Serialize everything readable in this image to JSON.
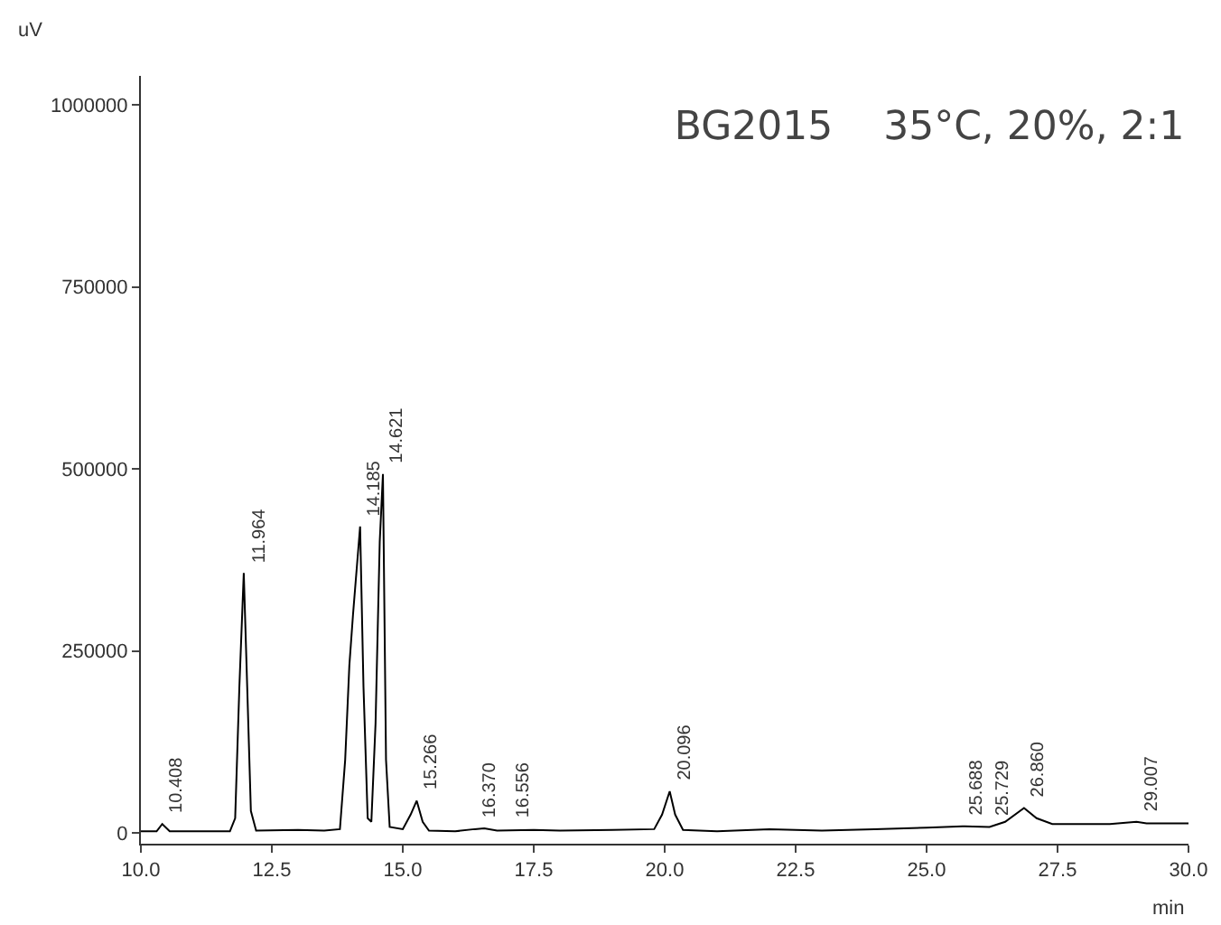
{
  "chart_data": {
    "type": "line",
    "title": "BG2015    35°C, 20%, 2:1",
    "xlabel": "min",
    "ylabel": "uV",
    "x": [
      10.0,
      10.3,
      10.408,
      10.55,
      11.0,
      11.7,
      11.8,
      11.88,
      11.964,
      12.03,
      12.1,
      12.2,
      13.0,
      13.5,
      13.8,
      13.9,
      13.98,
      14.05,
      14.185,
      14.25,
      14.33,
      14.4,
      14.48,
      14.56,
      14.621,
      14.68,
      14.75,
      15.0,
      15.15,
      15.266,
      15.38,
      15.5,
      16.0,
      16.37,
      16.556,
      16.8,
      17.5,
      18.0,
      19.0,
      19.8,
      19.95,
      20.096,
      20.2,
      20.35,
      21.0,
      22.0,
      23.0,
      24.0,
      25.0,
      25.688,
      25.729,
      26.2,
      26.5,
      26.86,
      27.1,
      27.4,
      28.5,
      29.007,
      29.2,
      30.0
    ],
    "series": [
      {
        "color": "#000000",
        "values": [
          2000,
          2000,
          12000,
          2000,
          2000,
          2000,
          20000,
          200000,
          357000,
          200000,
          30000,
          3000,
          4000,
          3000,
          5000,
          100000,
          230000,
          300000,
          421000,
          200000,
          20000,
          15000,
          150000,
          400000,
          493000,
          100000,
          8000,
          5000,
          25000,
          44000,
          15000,
          3000,
          2000,
          5000,
          6000,
          3000,
          4000,
          3000,
          4000,
          5000,
          25000,
          57000,
          25000,
          4000,
          2000,
          5000,
          3000,
          5000,
          7000,
          9000,
          9000,
          8000,
          15000,
          34000,
          20000,
          12000,
          12000,
          15000,
          13000,
          13000
        ]
      }
    ],
    "xlim": [
      10,
      30
    ],
    "ylim": [
      -15000,
      1040000
    ],
    "xticks": [
      {
        "value": 10,
        "label": "10.0"
      },
      {
        "value": 12.5,
        "label": "12.5"
      },
      {
        "value": 15,
        "label": "15.0"
      },
      {
        "value": 17.5,
        "label": "17.5"
      },
      {
        "value": 20,
        "label": "20.0"
      },
      {
        "value": 22.5,
        "label": "22.5"
      },
      {
        "value": 25,
        "label": "25.0"
      },
      {
        "value": 27.5,
        "label": "27.5"
      },
      {
        "value": 30,
        "label": "30.0"
      }
    ],
    "yticks": [
      0,
      250000,
      500000,
      750000,
      1000000
    ],
    "grid": false,
    "marker": "none",
    "line_style": "solid",
    "annotations": [
      {
        "text": "10.408",
        "x": 10.408,
        "y": 12000
      },
      {
        "text": "11.964",
        "x": 11.964,
        "y": 357000
      },
      {
        "text": "14.185",
        "x": 14.185,
        "y": 421000
      },
      {
        "text": "14.621",
        "x": 14.621,
        "y": 493000
      },
      {
        "text": "15.266",
        "x": 15.266,
        "y": 44000
      },
      {
        "text": "16.370",
        "x": 16.37,
        "y": 5000
      },
      {
        "text": "16.556",
        "x": 16.556,
        "y": 6000
      },
      {
        "text": "20.096",
        "x": 20.096,
        "y": 57000
      },
      {
        "text": "25.688",
        "x": 25.688,
        "y": 9000
      },
      {
        "text": "25.729",
        "x": 25.729,
        "y": 9000
      },
      {
        "text": "26.860",
        "x": 26.86,
        "y": 34000
      },
      {
        "text": "29.007",
        "x": 29.007,
        "y": 15000
      }
    ]
  }
}
